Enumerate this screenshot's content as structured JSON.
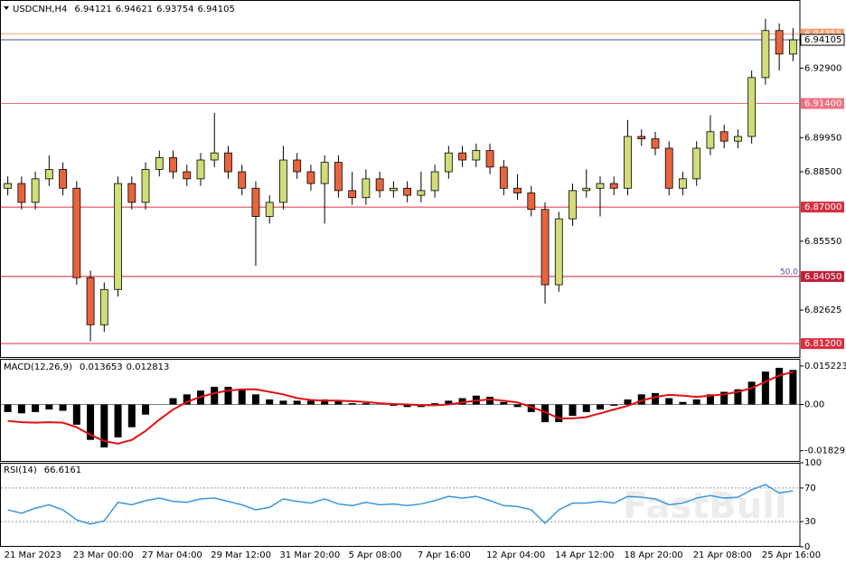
{
  "chart_data": [
    {
      "type": "candlestick",
      "symbol": "USDCNH,H4",
      "ohlc_header": [
        6.94121,
        6.94621,
        6.93754,
        6.94105
      ],
      "watermark": "FastBull",
      "categories": [
        "21 Mar 2023",
        null,
        null,
        null,
        null,
        "23 Mar 00:00",
        null,
        null,
        null,
        null,
        "27 Mar 04:00",
        null,
        null,
        null,
        null,
        "29 Mar 12:00",
        null,
        null,
        null,
        null,
        "31 Mar 20:00",
        null,
        null,
        null,
        null,
        "5 Apr 08:00",
        null,
        null,
        null,
        null,
        "7 Apr 16:00",
        null,
        null,
        null,
        null,
        "12 Apr 04:00",
        null,
        null,
        null,
        null,
        "14 Apr 12:00",
        null,
        null,
        null,
        null,
        "18 Apr 20:00",
        null,
        null,
        null,
        null,
        "21 Apr 08:00",
        null,
        null,
        null,
        null,
        "25 Apr 16:00",
        null,
        null
      ],
      "open": [
        6.878,
        6.88,
        6.872,
        6.882,
        6.886,
        6.878,
        6.84,
        6.82,
        6.835,
        6.88,
        6.872,
        6.886,
        6.891,
        6.885,
        6.882,
        6.89,
        6.893,
        6.885,
        6.878,
        6.866,
        6.872,
        6.89,
        6.885,
        6.88,
        6.889,
        6.877,
        6.874,
        6.882,
        6.877,
        6.878,
        6.875,
        6.877,
        6.885,
        6.893,
        6.89,
        6.894,
        6.887,
        6.878,
        6.876,
        6.869,
        6.837,
        6.865,
        6.877,
        6.878,
        6.88,
        6.878,
        6.9,
        6.899,
        6.895,
        6.878,
        6.882,
        6.895,
        6.902,
        6.898,
        6.9,
        6.925,
        6.945,
        6.935
      ],
      "high": [
        6.883,
        6.883,
        6.885,
        6.892,
        6.889,
        6.881,
        6.843,
        6.838,
        6.883,
        6.883,
        6.889,
        6.894,
        6.894,
        6.888,
        6.893,
        6.91,
        6.896,
        6.888,
        6.881,
        6.875,
        6.896,
        6.893,
        6.888,
        6.892,
        6.892,
        6.885,
        6.886,
        6.885,
        6.881,
        6.881,
        6.885,
        6.888,
        6.896,
        6.896,
        6.897,
        6.897,
        6.89,
        6.884,
        6.879,
        6.872,
        6.868,
        6.88,
        6.886,
        6.883,
        6.883,
        6.907,
        6.903,
        6.902,
        6.898,
        6.885,
        6.898,
        6.909,
        6.905,
        6.903,
        6.928,
        6.95,
        6.948,
        6.946
      ],
      "low": [
        6.875,
        6.869,
        6.869,
        6.879,
        6.875,
        6.837,
        6.813,
        6.817,
        6.832,
        6.869,
        6.869,
        6.883,
        6.882,
        6.879,
        6.879,
        6.887,
        6.882,
        6.875,
        6.845,
        6.863,
        6.869,
        6.882,
        6.877,
        6.863,
        6.874,
        6.871,
        6.871,
        6.874,
        6.874,
        6.872,
        6.872,
        6.874,
        6.882,
        6.887,
        6.887,
        6.884,
        6.875,
        6.873,
        6.866,
        6.829,
        6.834,
        6.862,
        6.874,
        6.866,
        6.875,
        6.875,
        6.896,
        6.892,
        6.875,
        6.875,
        6.879,
        6.892,
        6.895,
        6.895,
        6.897,
        6.922,
        6.928,
        6.932
      ],
      "close": [
        6.88,
        6.872,
        6.882,
        6.886,
        6.878,
        6.84,
        6.82,
        6.835,
        6.88,
        6.872,
        6.886,
        6.891,
        6.885,
        6.882,
        6.89,
        6.893,
        6.885,
        6.878,
        6.866,
        6.872,
        6.89,
        6.885,
        6.88,
        6.889,
        6.877,
        6.874,
        6.882,
        6.877,
        6.878,
        6.875,
        6.877,
        6.885,
        6.893,
        6.89,
        6.894,
        6.887,
        6.878,
        6.876,
        6.869,
        6.837,
        6.865,
        6.877,
        6.878,
        6.88,
        6.878,
        6.9,
        6.899,
        6.895,
        6.878,
        6.882,
        6.895,
        6.902,
        6.898,
        6.9,
        6.925,
        6.945,
        6.935,
        6.94105
      ],
      "up_color": "#d2dc78",
      "down_color": "#e8643c",
      "ylim": [
        6.8063,
        6.9572
      ],
      "yticks": [
        {
          "value": 6.929,
          "label": "6.92900"
        },
        {
          "value": 6.8995,
          "label": "6.89950"
        },
        {
          "value": 6.885,
          "label": "6.88500"
        },
        {
          "value": 6.8555,
          "label": "6.85550"
        },
        {
          "value": 6.82625,
          "label": "6.82625"
        }
      ],
      "levels": [
        {
          "value": 6.9435,
          "label": "6.94355",
          "color": "#f4a070"
        },
        {
          "value": 6.914,
          "label": "6.91400",
          "color": "#f07080"
        },
        {
          "value": 6.87,
          "label": "6.87000",
          "color": "#d83040"
        },
        {
          "value": 6.8405,
          "label": "6.84050",
          "color": "#c0203a",
          "fib_label": "50.0"
        },
        {
          "value": 6.812,
          "label": "6.81200",
          "color": "#d83040"
        }
      ],
      "current_price": {
        "value": 6.94105,
        "label": "6.94105",
        "color": "#3a4ea0"
      }
    },
    {
      "type": "macd",
      "title": "MACD(12,26,9)",
      "stats": [
        0.013653,
        0.012813
      ],
      "ylim": [
        -0.0227,
        0.0177
      ],
      "yticks": [
        0.015223,
        {
          "value": 0,
          "label": "0.00"
        },
        -0.018292
      ],
      "series": [
        {
          "type": "bar",
          "color": "#000000",
          "values": [
            -0.003,
            -0.0035,
            -0.003,
            -0.002,
            -0.0025,
            -0.008,
            -0.014,
            -0.017,
            -0.013,
            -0.009,
            -0.004,
            0,
            0.0025,
            0.004,
            0.0055,
            0.007,
            0.007,
            0.006,
            0.004,
            0.002,
            0.0015,
            0.0015,
            0.0015,
            0.002,
            0.0015,
            0.0005,
            0.0005,
            0,
            -0.0005,
            -0.001,
            -0.001,
            0.0005,
            0.0015,
            0.0025,
            0.0035,
            0.003,
            0.001,
            -0.001,
            -0.003,
            -0.007,
            -0.007,
            -0.0045,
            -0.003,
            -0.002,
            -0.0005,
            0.002,
            0.004,
            0.0045,
            0.0025,
            0.001,
            0.002,
            0.004,
            0.005,
            0.006,
            0.009,
            0.013,
            0.0145,
            0.013653
          ]
        },
        {
          "type": "line",
          "color": "#e01010",
          "values": [
            -0.0065,
            -0.007,
            -0.0072,
            -0.007,
            -0.0072,
            -0.009,
            -0.012,
            -0.0145,
            -0.0155,
            -0.014,
            -0.0105,
            -0.006,
            -0.002,
            0.001,
            0.003,
            0.0045,
            0.0055,
            0.006,
            0.006,
            0.005,
            0.004,
            0.0025,
            0.0018,
            0.0015,
            0.0015,
            0.0013,
            0.001,
            0.0005,
            0.0002,
            0,
            -0.0003,
            -0.0003,
            0,
            0.0008,
            0.0015,
            0.002,
            0.0015,
            0.0008,
            -0.001,
            -0.003,
            -0.0055,
            -0.0055,
            -0.005,
            -0.0035,
            -0.002,
            -0.0005,
            0.0015,
            0.003,
            0.0038,
            0.0035,
            0.003,
            0.0035,
            0.004,
            0.005,
            0.0065,
            0.009,
            0.0115,
            0.012813
          ]
        }
      ]
    },
    {
      "type": "line",
      "title": "RSI(14)",
      "stats": [
        66.6161
      ],
      "color": "#3a96dc",
      "ylim": [
        0,
        100
      ],
      "yticks": [
        100,
        70,
        30,
        0
      ],
      "dotted_levels": [
        70,
        30
      ],
      "values": [
        44,
        40,
        46,
        50,
        44,
        32,
        27,
        31,
        53,
        50,
        55,
        58,
        54,
        53,
        57,
        58,
        54,
        50,
        44,
        47,
        57,
        54,
        52,
        57,
        51,
        49,
        53,
        50,
        51,
        49,
        51,
        55,
        60,
        58,
        60,
        55,
        49,
        48,
        44,
        28,
        44,
        52,
        52,
        54,
        52,
        60,
        59,
        57,
        50,
        52,
        58,
        61,
        58,
        59,
        68,
        74,
        64,
        66.6161
      ]
    }
  ]
}
